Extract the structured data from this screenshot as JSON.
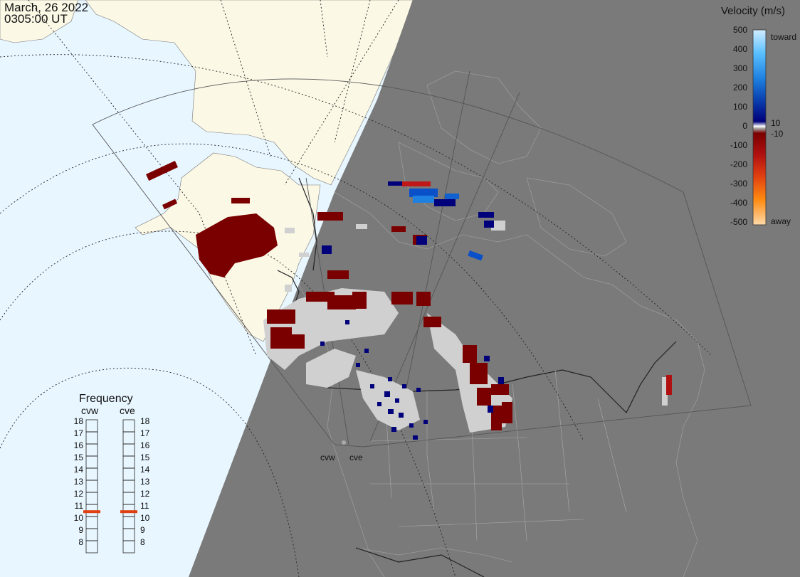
{
  "header": {
    "date": "March, 26 2022",
    "time": "0305:00 UT"
  },
  "legend": {
    "title": "Velocity (m/s)",
    "ticks": [
      "500",
      "400",
      "300",
      "200",
      "100",
      "0",
      "-100",
      "-200",
      "-300",
      "-400",
      "-500"
    ],
    "labels": {
      "toward": "toward",
      "away": "away",
      "pos10": "10",
      "neg10": "-10"
    }
  },
  "frequency": {
    "title": "Frequency",
    "radars": [
      {
        "name": "cvw",
        "value": 10.9
      },
      {
        "name": "cve",
        "value": 10.9
      }
    ],
    "ticks": [
      "18",
      "17",
      "16",
      "15",
      "14",
      "13",
      "12",
      "11",
      "10",
      "9",
      "8"
    ]
  },
  "radars": [
    {
      "name": "cvw"
    },
    {
      "name": "cve"
    }
  ],
  "colors": {
    "ocean": "#e8f6ff",
    "land": "#fbf8e6",
    "night": "#7a7a7a",
    "ground_scatter": "#d0d0d0",
    "away_dark": "#7a0000",
    "toward_dark": "#00007a",
    "toward_mid": "#0a50c8",
    "indicator": "#e04010"
  }
}
